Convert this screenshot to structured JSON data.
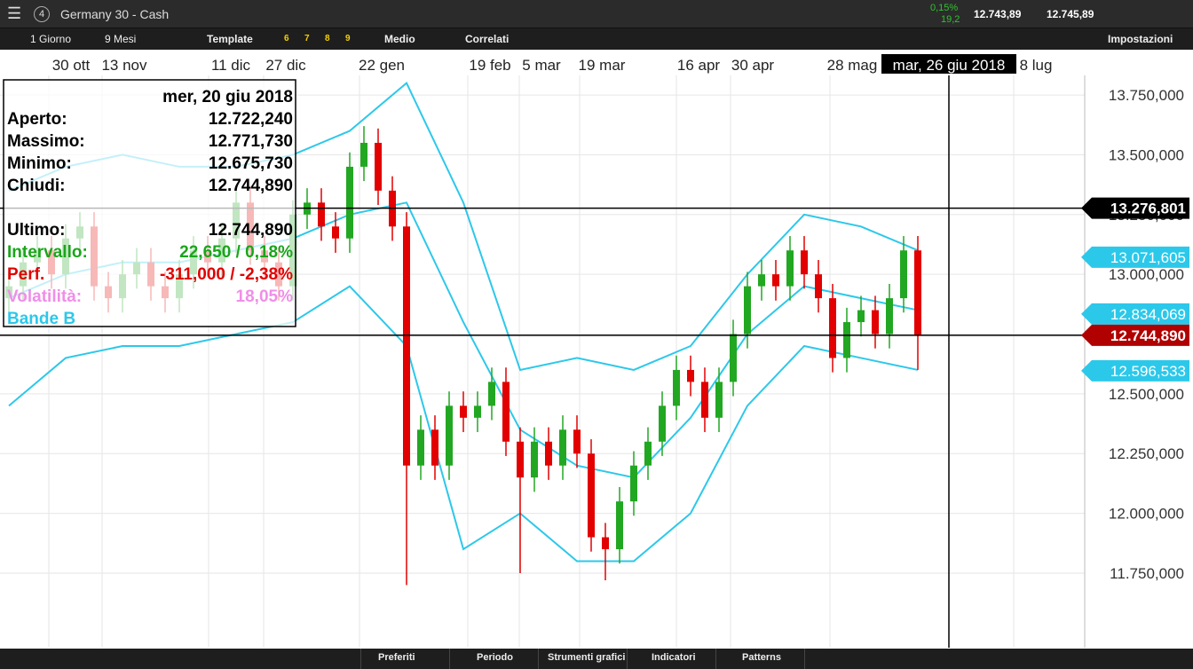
{
  "header": {
    "menu_badge": "4",
    "instrument": "Germany 30 - Cash",
    "change_pct": "0,15%",
    "change_pts": "19,2",
    "bid": "12.743,89",
    "ask": "12.745,89"
  },
  "toolbar": {
    "interval": "1 Giorno",
    "range": "9 Mesi",
    "template": "Template",
    "presets": [
      "6",
      "7",
      "8",
      "9"
    ],
    "style": "Medio",
    "related": "Correlati",
    "settings": "Impostazioni"
  },
  "bottom_bar": {
    "tabs": [
      "Preferiti",
      "Periodo",
      "Strumenti grafici",
      "Indicatori",
      "Patterns"
    ]
  },
  "chart_data": {
    "type": "candlestick",
    "dates": [
      "30 ott",
      "13 nov",
      "11 dic",
      "27 dic",
      "22 gen",
      "19 feb",
      "5 mar",
      "19 mar",
      "16 apr",
      "30 apr",
      "28 mag",
      "8 lug"
    ],
    "cursor_date": "mar, 26 giu 2018",
    "ylim": [
      11438,
      13832
    ],
    "yticks": [
      {
        "value": 13750,
        "label": "13.750,000"
      },
      {
        "value": 13500,
        "label": "13.500,000"
      },
      {
        "value": 13250,
        "label": "13.250,000"
      },
      {
        "value": 13000,
        "label": "13.000,000"
      },
      {
        "value": 12750,
        "label": "12.750,000"
      },
      {
        "value": 12500,
        "label": "12.500,000"
      },
      {
        "value": 12250,
        "label": "12.250,000"
      },
      {
        "value": 12000,
        "label": "12.000,000"
      },
      {
        "value": 11750,
        "label": "11.750,000"
      }
    ],
    "up_color": "#22a722",
    "down_color": "#e20000",
    "grid": true,
    "open": [
      12900,
      12950,
      13050,
      13100,
      13000,
      13150,
      13200,
      12950,
      12900,
      13000,
      13050,
      12950,
      12900,
      13000,
      13100,
      13050,
      13150,
      13300,
      13100,
      13050,
      12950,
      13250,
      13300,
      13200,
      13150,
      13450,
      13550,
      13350,
      13200,
      12200,
      12350,
      12200,
      12450,
      12400,
      12450,
      12550,
      12300,
      12150,
      12300,
      12200,
      12350,
      12250,
      11900,
      11850,
      12050,
      12200,
      12300,
      12450,
      12600,
      12550,
      12400,
      12550,
      12750,
      12950,
      13000,
      12950,
      13100,
      13000,
      12900,
      12650,
      12800,
      12850,
      12750,
      12900,
      13100
    ],
    "high": [
      13010,
      13110,
      13160,
      13160,
      13210,
      13260,
      13260,
      13010,
      13060,
      13110,
      13110,
      13010,
      13060,
      13160,
      13160,
      13210,
      13360,
      13360,
      13160,
      13110,
      13310,
      13360,
      13360,
      13260,
      13510,
      13620,
      13610,
      13410,
      13260,
      12410,
      12410,
      12510,
      12510,
      12510,
      12610,
      12610,
      12360,
      12360,
      12360,
      12410,
      12410,
      12310,
      11960,
      12110,
      12260,
      12360,
      12510,
      12660,
      12660,
      12610,
      12610,
      12810,
      13010,
      13060,
      13060,
      13160,
      13160,
      13060,
      12960,
      12860,
      12910,
      12910,
      12960,
      13160,
      13160
    ],
    "low": [
      12840,
      12890,
      12990,
      12940,
      12940,
      13090,
      12890,
      12840,
      12840,
      12940,
      12890,
      12840,
      12840,
      12940,
      12990,
      12990,
      13090,
      13040,
      12990,
      12890,
      12890,
      13190,
      13140,
      13090,
      13090,
      13390,
      13290,
      13140,
      11700,
      12140,
      12140,
      12140,
      12340,
      12340,
      12390,
      12240,
      11750,
      12090,
      12140,
      12140,
      12190,
      11840,
      11720,
      11790,
      11990,
      12140,
      12240,
      12390,
      12490,
      12340,
      12340,
      12490,
      12690,
      12890,
      12890,
      12890,
      12940,
      12840,
      12590,
      12590,
      12740,
      12690,
      12690,
      12840,
      12600
    ],
    "close": [
      12950,
      13050,
      13100,
      13000,
      13150,
      13200,
      12950,
      12900,
      13000,
      13050,
      12950,
      12900,
      13000,
      13100,
      13050,
      13150,
      13300,
      13100,
      13050,
      12950,
      13250,
      13300,
      13200,
      13150,
      13450,
      13550,
      13350,
      13200,
      12200,
      12350,
      12200,
      12450,
      12400,
      12450,
      12550,
      12300,
      12150,
      12300,
      12200,
      12350,
      12250,
      11900,
      11850,
      12050,
      12200,
      12300,
      12450,
      12600,
      12550,
      12400,
      12550,
      12750,
      12950,
      13000,
      12950,
      13100,
      13000,
      12900,
      12650,
      12800,
      12850,
      12750,
      12900,
      13100,
      12744.89
    ],
    "bands": {
      "name": "Bande B",
      "color": "#2cc8ea",
      "upper": [
        13350,
        13450,
        13500,
        13450,
        13450,
        13500,
        13600,
        13800,
        13300,
        12600,
        12650,
        12600,
        12700,
        13000,
        13250,
        13200,
        13100
      ],
      "middle": [
        12900,
        13000,
        13050,
        13050,
        13100,
        13150,
        13250,
        13300,
        12800,
        12350,
        12200,
        12150,
        12400,
        12750,
        12950,
        12900,
        12850
      ],
      "lower": [
        12450,
        12650,
        12700,
        12700,
        12750,
        12800,
        12950,
        12700,
        11850,
        12000,
        11800,
        11800,
        12000,
        12450,
        12700,
        12650,
        12600
      ]
    },
    "price_markers": [
      {
        "value": 13276.801,
        "label": "13.276,801",
        "color": "#000000"
      },
      {
        "value": 13071.605,
        "label": "13.071,605",
        "color": "#2cc8ea"
      },
      {
        "value": 12834.069,
        "label": "12.834,069",
        "color": "#2cc8ea"
      },
      {
        "value": 12744.89,
        "label": "12.744,890",
        "color": "#b00000"
      },
      {
        "value": 12596.533,
        "label": "12.596,533",
        "color": "#2cc8ea"
      }
    ],
    "info": {
      "date": "mer, 20 giu 2018",
      "rows": [
        {
          "label": "Aperto:",
          "value": "12.722,240",
          "color": "#000000"
        },
        {
          "label": "Massimo:",
          "value": "12.771,730",
          "color": "#000000"
        },
        {
          "label": "Minimo:",
          "value": "12.675,730",
          "color": "#000000"
        },
        {
          "label": "Chiudi:",
          "value": "12.744,890",
          "color": "#000000"
        },
        {
          "label": "Ultimo:",
          "value": "12.744,890",
          "color": "#000000"
        },
        {
          "label": "Intervallo:",
          "value": "22,650 / 0,18%",
          "color": "#1aa51a"
        },
        {
          "label": "Perf.",
          "value": "-311,000 / -2,38%",
          "color": "#e00000"
        },
        {
          "label": "Volatilità:",
          "value": "18,05%",
          "color": "#f08ee8"
        },
        {
          "label": "Bande B",
          "color": "#2cc8ea"
        }
      ]
    }
  }
}
